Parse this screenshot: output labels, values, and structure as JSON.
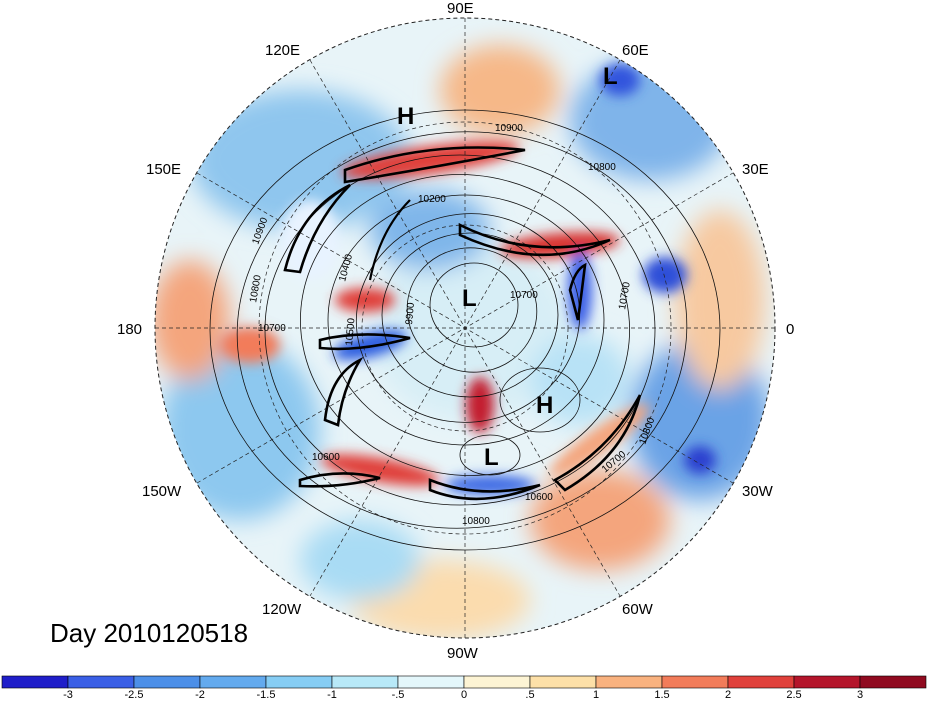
{
  "longitude_labels": {
    "e90": "90E",
    "e60": "60E",
    "e30": "30E",
    "zero": "0",
    "w30": "30W",
    "w60": "60W",
    "w90": "90W",
    "w120": "120W",
    "w150": "150W",
    "l180": "180",
    "e150": "150E",
    "e120": "120E"
  },
  "pressure_centers": {
    "h1": "H",
    "h2": "H",
    "l1": "L",
    "l2": "L",
    "l3": "L"
  },
  "contour_labels": {
    "c1": "10900",
    "c2": "10800",
    "c3": "10200",
    "c4": "10900",
    "c5": "10800",
    "c6": "10400",
    "c7": "10700",
    "c8": "10500",
    "c9": "10600",
    "c10": "10700",
    "c11": "10800",
    "c12": "10600",
    "c13": "10800",
    "c14": "10700",
    "c15": "9900",
    "c16": "10700"
  },
  "day_label": "Day 2010120518",
  "colorbar": {
    "ticks": [
      "-3",
      "-2.5",
      "-2",
      "-1.5",
      "-1",
      "-.5",
      "0",
      ".5",
      "1",
      "1.5",
      "2",
      "2.5",
      "3"
    ],
    "colors": [
      "#1f1ec9",
      "#3a5fe6",
      "#4c8fe8",
      "#63aaee",
      "#86cdf4",
      "#b8e9f8",
      "#e4f7fb",
      "#fdf4d4",
      "#fde0a8",
      "#f9b27f",
      "#f27c5a",
      "#e0413b",
      "#b4152b",
      "#900a20"
    ]
  }
}
